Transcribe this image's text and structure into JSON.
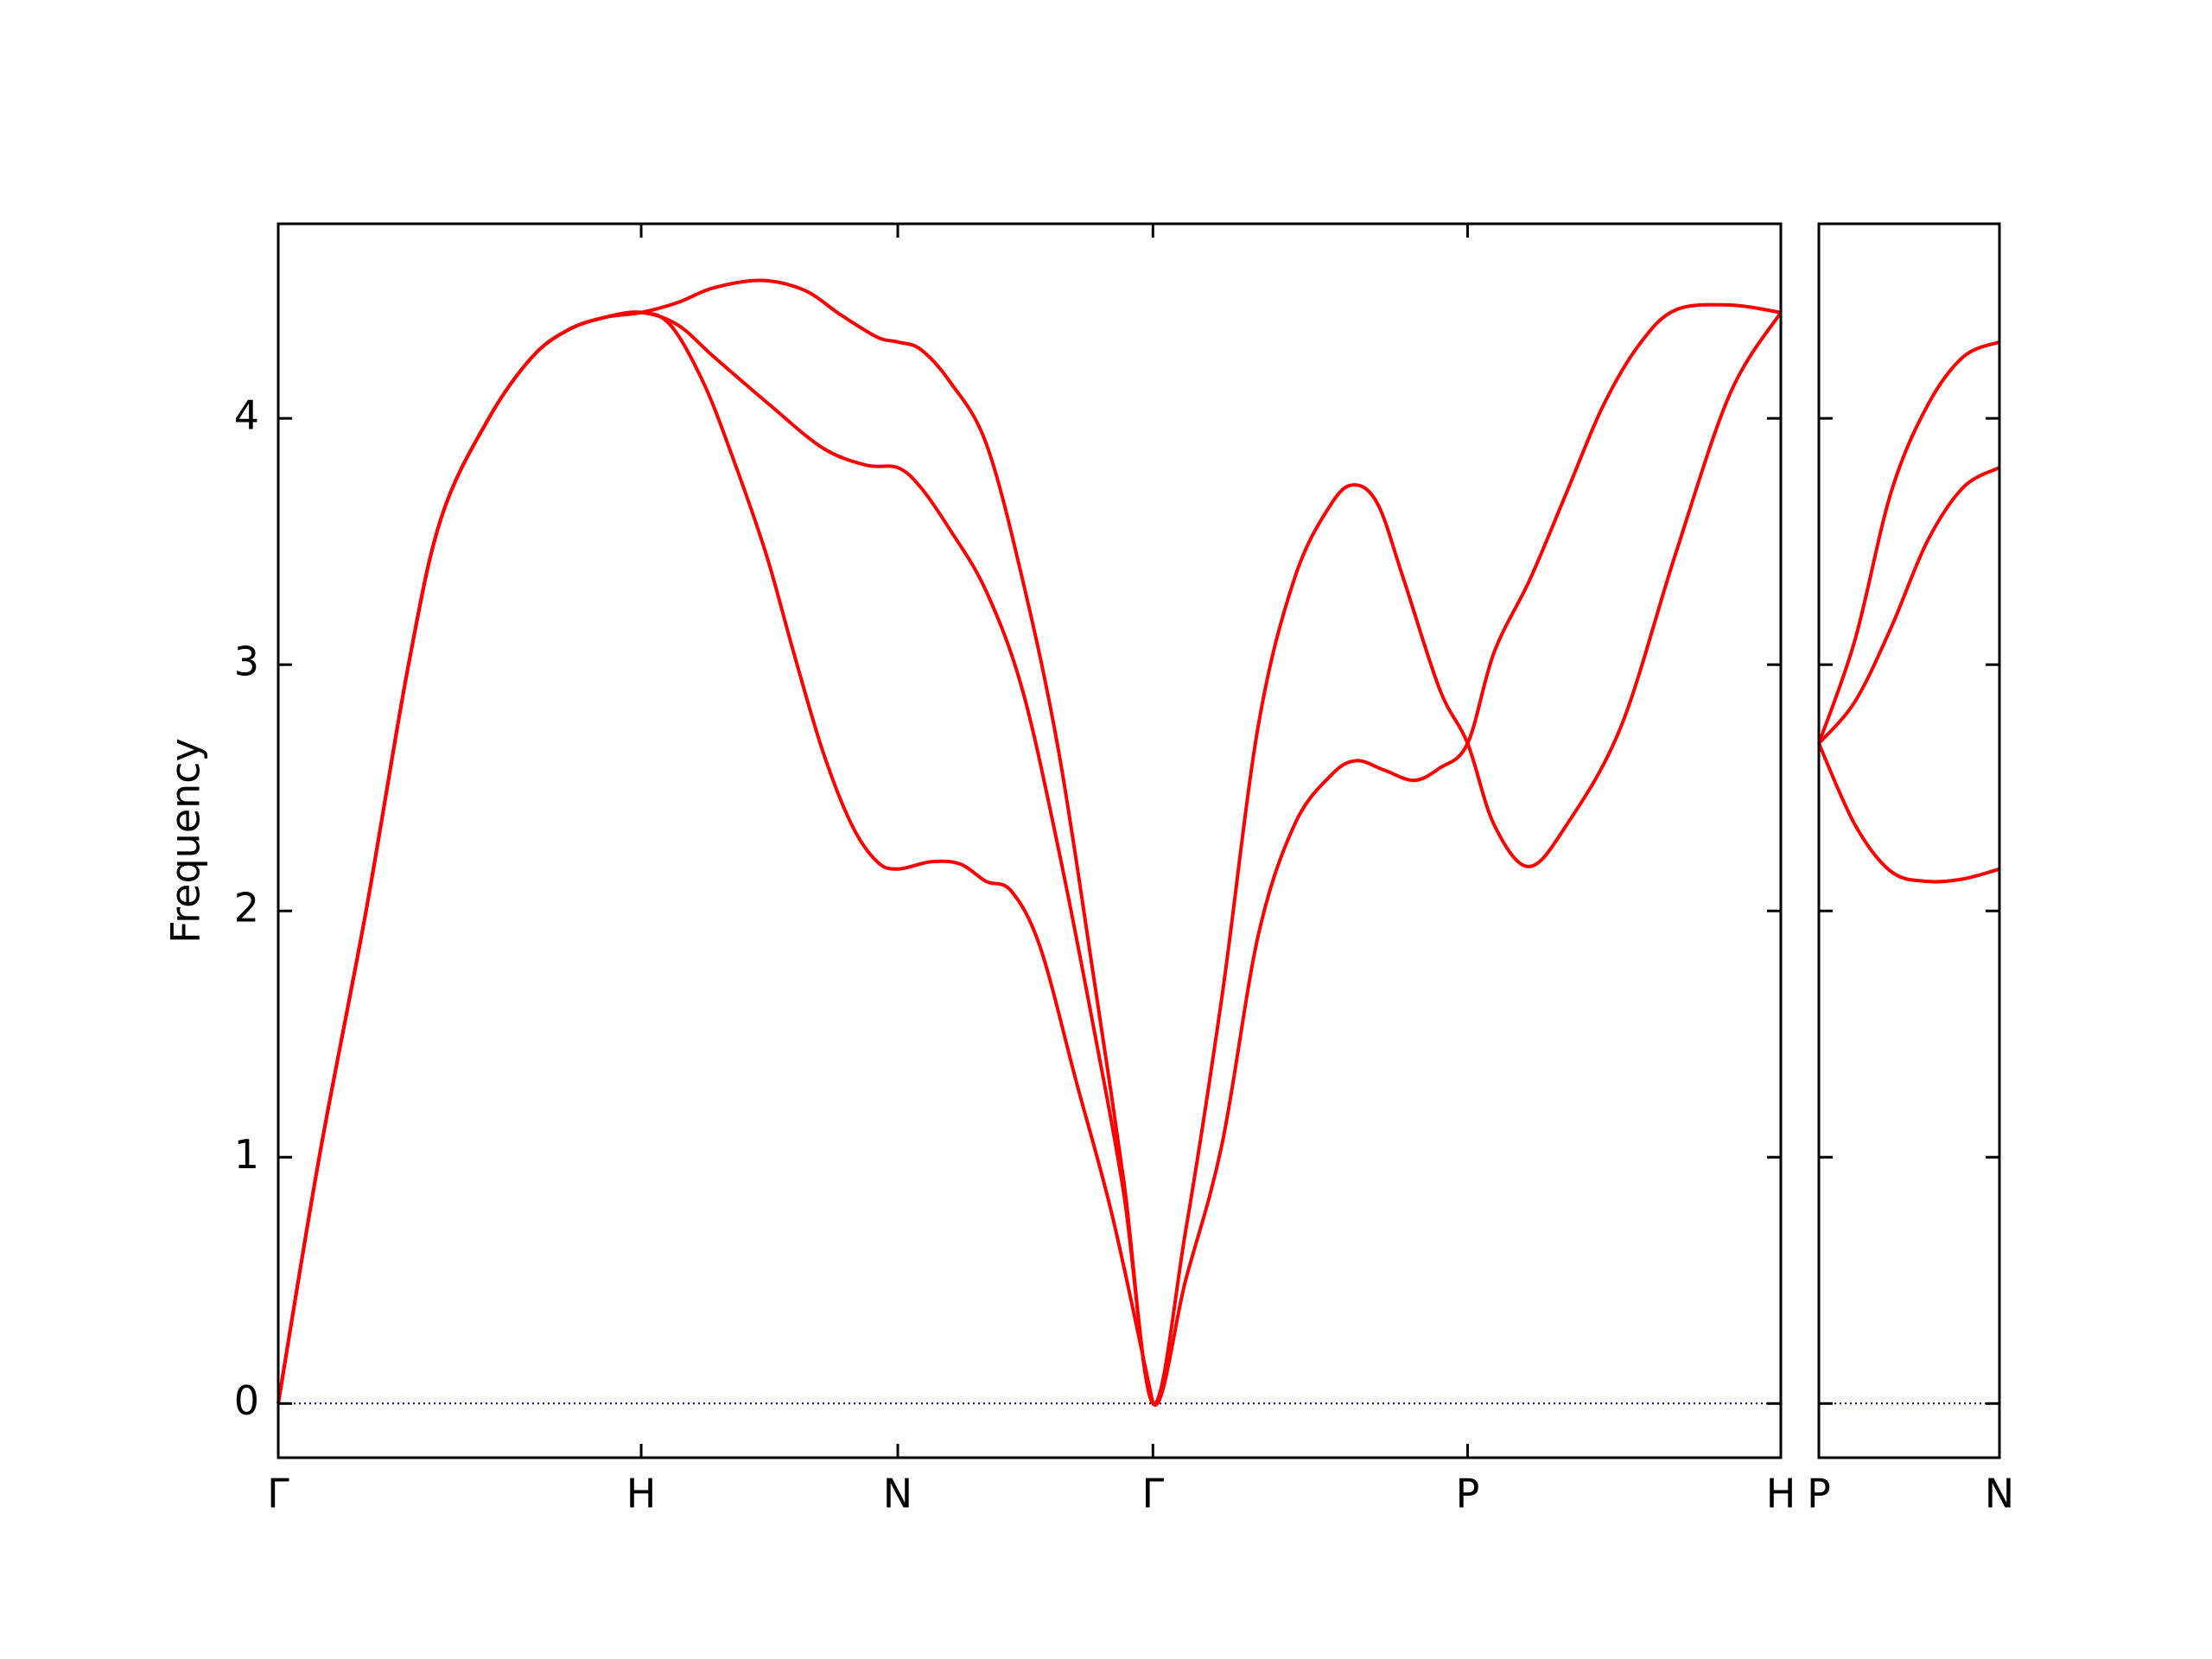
{
  "chart_data": [
    {
      "type": "line",
      "ylabel": "Frequency",
      "xlim": [
        0,
        4.14
      ],
      "ylim": [
        -0.22,
        4.79
      ],
      "xticks": [
        {
          "value": 0,
          "label": "Γ"
        },
        {
          "value": 1,
          "label": "H"
        },
        {
          "value": 1.707,
          "label": "N"
        },
        {
          "value": 2.41,
          "label": "Γ"
        },
        {
          "value": 3.277,
          "label": "P"
        },
        {
          "value": 4.14,
          "label": "H"
        }
      ],
      "yticks": [
        0,
        1,
        2,
        3,
        4
      ],
      "ytick_labels": true,
      "reference_line": {
        "y": 0,
        "color": "#00008b"
      },
      "series": [
        {
          "color": "#ff0000",
          "x": [
            0,
            0.113,
            0.242,
            0.359,
            0.45,
            0.58,
            0.7,
            0.8,
            0.9,
            1,
            1.1,
            1.2,
            1.332,
            1.45,
            1.55,
            1.65,
            1.707,
            1.77,
            1.85,
            1.95,
            2.05,
            2.15,
            2.25,
            2.33,
            2.41,
            2.5,
            2.6,
            2.7,
            2.8,
            2.9,
            2.965,
            3.03,
            3.1,
            3.2,
            3.277,
            3.35,
            3.445,
            3.55,
            3.7,
            3.85,
            4.0,
            4.14
          ],
          "values": [
            0,
            1,
            2,
            3,
            3.6,
            4,
            4.25,
            4.36,
            4.41,
            4.43,
            4.47,
            4.53,
            4.56,
            4.52,
            4.42,
            4.33,
            4.31,
            4.28,
            4.15,
            3.9,
            3.35,
            2.65,
            1.7,
            0.9,
            0,
            0.7,
            1.65,
            2.75,
            3.35,
            3.65,
            3.73,
            3.65,
            3.35,
            2.9,
            2.68,
            2.35,
            2.18,
            2.35,
            2.75,
            3.45,
            4.1,
            4.43
          ]
        },
        {
          "color": "#ff0000",
          "x": [
            0,
            0.113,
            0.242,
            0.359,
            0.45,
            0.58,
            0.7,
            0.8,
            0.9,
            1,
            1.1,
            1.2,
            1.35,
            1.5,
            1.62,
            1.707,
            1.77,
            1.85,
            1.95,
            2.05,
            2.15,
            2.25,
            2.33,
            2.41,
            2.5,
            2.6,
            2.7,
            2.8,
            2.9,
            2.97,
            3.05,
            3.13,
            3.2,
            3.277,
            3.35,
            3.45,
            3.55,
            3.65,
            3.75,
            3.85,
            4.0,
            4.14
          ],
          "values": [
            0,
            1,
            2,
            3,
            3.6,
            4,
            4.25,
            4.36,
            4.41,
            4.43,
            4.38,
            4.25,
            4.06,
            3.88,
            3.81,
            3.8,
            3.72,
            3.55,
            3.3,
            2.9,
            2.25,
            1.5,
            0.85,
            0,
            0.5,
            1.05,
            1.9,
            2.35,
            2.55,
            2.61,
            2.57,
            2.53,
            2.58,
            2.68,
            3.05,
            3.35,
            3.7,
            4.05,
            4.3,
            4.44,
            4.46,
            4.43
          ]
        },
        {
          "color": "#ff0000",
          "x": [
            0,
            0.113,
            0.242,
            0.359,
            0.45,
            0.58,
            0.7,
            0.8,
            0.9,
            1,
            1.08,
            1.17,
            1.25,
            1.344,
            1.42,
            1.5,
            1.58,
            1.65,
            1.707,
            1.8,
            1.88,
            1.95,
            2.02,
            2.1,
            2.2,
            2.3,
            2.41
          ],
          "values": [
            0,
            1,
            2,
            3,
            3.6,
            4,
            4.25,
            4.36,
            4.41,
            4.43,
            4.38,
            4.15,
            3.85,
            3.45,
            3.05,
            2.65,
            2.35,
            2.2,
            2.17,
            2.2,
            2.19,
            2.12,
            2.08,
            1.85,
            1.3,
            0.75,
            0
          ]
        }
      ]
    },
    {
      "type": "line",
      "xlim": [
        0,
        0.5
      ],
      "ylim": [
        -0.22,
        4.79
      ],
      "xticks": [
        {
          "value": 0,
          "label": "P"
        },
        {
          "value": 0.5,
          "label": "N"
        }
      ],
      "yticks": [
        0,
        1,
        2,
        3,
        4
      ],
      "ytick_labels": false,
      "reference_line": {
        "y": 0,
        "color": "#00008b"
      },
      "series": [
        {
          "color": "#ff0000",
          "x": [
            0,
            0.1,
            0.2,
            0.3,
            0.4,
            0.5
          ],
          "values": [
            2.68,
            3.1,
            3.7,
            4.05,
            4.25,
            4.31
          ]
        },
        {
          "color": "#ff0000",
          "x": [
            0,
            0.1,
            0.2,
            0.3,
            0.4,
            0.5
          ],
          "values": [
            2.68,
            2.85,
            3.15,
            3.5,
            3.72,
            3.8
          ]
        },
        {
          "color": "#ff0000",
          "x": [
            0,
            0.1,
            0.2,
            0.3,
            0.4,
            0.5
          ],
          "values": [
            2.68,
            2.35,
            2.16,
            2.12,
            2.13,
            2.17
          ]
        }
      ]
    }
  ]
}
